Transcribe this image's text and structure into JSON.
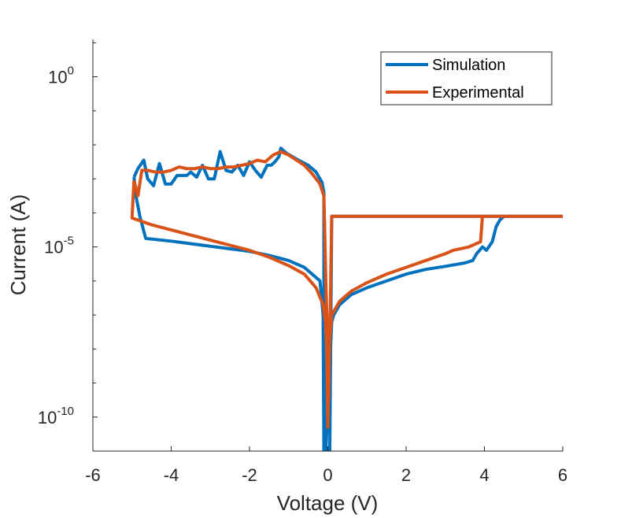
{
  "chart_data": {
    "type": "line",
    "title": "",
    "xlabel": "Voltage (V)",
    "ylabel": "Current (A)",
    "xlim": [
      -6,
      6
    ],
    "ylim_exponent": [
      -11,
      1.1
    ],
    "yscale": "log",
    "x_ticks": [
      -6,
      -4,
      -2,
      0,
      2,
      4,
      6
    ],
    "x_tick_labels": [
      "-6",
      "-4",
      "-2",
      "0",
      "2",
      "4",
      "6"
    ],
    "y_ticks": [
      {
        "exp": 0,
        "base": "10",
        "power": "0"
      },
      {
        "exp": -5,
        "base": "10",
        "power": "-5"
      },
      {
        "exp": -10,
        "base": "10",
        "power": "-10"
      }
    ],
    "legend": {
      "position": "top-right"
    },
    "series": [
      {
        "name": "Simulation",
        "color": "#0072BD",
        "points": [
          [
            -4.95,
            -2.95
          ],
          [
            -4.85,
            -2.7
          ],
          [
            -4.7,
            -2.45
          ],
          [
            -4.6,
            -3.0
          ],
          [
            -4.45,
            -3.2
          ],
          [
            -4.3,
            -2.55
          ],
          [
            -4.15,
            -3.15
          ],
          [
            -4.0,
            -3.15
          ],
          [
            -3.85,
            -2.9
          ],
          [
            -3.7,
            -2.9
          ],
          [
            -3.6,
            -2.9
          ],
          [
            -3.5,
            -2.8
          ],
          [
            -3.35,
            -2.95
          ],
          [
            -3.2,
            -2.6
          ],
          [
            -3.05,
            -3.0
          ],
          [
            -2.9,
            -3.0
          ],
          [
            -2.75,
            -2.2
          ],
          [
            -2.6,
            -2.75
          ],
          [
            -2.45,
            -2.8
          ],
          [
            -2.3,
            -2.6
          ],
          [
            -2.15,
            -2.9
          ],
          [
            -2.0,
            -2.5
          ],
          [
            -1.85,
            -2.75
          ],
          [
            -1.7,
            -2.95
          ],
          [
            -1.55,
            -2.6
          ],
          [
            -1.45,
            -2.6
          ],
          [
            -1.35,
            -2.5
          ],
          [
            -1.25,
            -2.35
          ],
          [
            -1.2,
            -2.1
          ],
          [
            -1.05,
            -2.25
          ],
          [
            -0.9,
            -2.35
          ],
          [
            -0.75,
            -2.45
          ],
          [
            -0.5,
            -2.6
          ],
          [
            -0.3,
            -2.8
          ],
          [
            -0.15,
            -3.1
          ],
          [
            -0.1,
            -3.4
          ],
          [
            -0.1,
            -6.0
          ],
          [
            -0.08,
            -11.0
          ],
          [
            0.05,
            -11.0
          ],
          [
            0.1,
            -4.1
          ],
          [
            0.2,
            -4.1
          ],
          [
            0.5,
            -4.1
          ],
          [
            1.0,
            -4.1
          ],
          [
            2.0,
            -4.1
          ],
          [
            3.0,
            -4.1
          ],
          [
            4.3,
            -4.1
          ],
          [
            5.0,
            -4.1
          ],
          [
            6.0,
            -4.1
          ]
        ],
        "return_points": [
          [
            4.5,
            -4.1
          ],
          [
            4.4,
            -4.2
          ],
          [
            4.3,
            -4.4
          ],
          [
            4.2,
            -4.85
          ],
          [
            4.05,
            -5.1
          ],
          [
            3.95,
            -5.0
          ],
          [
            3.8,
            -5.2
          ],
          [
            3.7,
            -5.4
          ],
          [
            3.5,
            -5.47
          ],
          [
            3.0,
            -5.57
          ],
          [
            2.5,
            -5.66
          ],
          [
            2.0,
            -5.8
          ],
          [
            1.5,
            -6.0
          ],
          [
            1.0,
            -6.2
          ],
          [
            0.6,
            -6.4
          ],
          [
            0.3,
            -6.7
          ],
          [
            0.15,
            -7.0
          ],
          [
            0.1,
            -7.2
          ],
          [
            -0.05,
            -11.0
          ],
          [
            -0.1,
            -11.0
          ],
          [
            -0.12,
            -7.0
          ],
          [
            -0.2,
            -6.0
          ],
          [
            -0.35,
            -5.85
          ],
          [
            -0.6,
            -5.6
          ],
          [
            -1.0,
            -5.4
          ],
          [
            -1.5,
            -5.25
          ],
          [
            -2.0,
            -5.13
          ],
          [
            -3.0,
            -4.98
          ],
          [
            -4.0,
            -4.83
          ],
          [
            -4.65,
            -4.75
          ],
          [
            -4.8,
            -4.1
          ],
          [
            -4.9,
            -3.5
          ],
          [
            -4.95,
            -2.95
          ]
        ]
      },
      {
        "name": "Experimental",
        "color": "#D95319",
        "points": [
          [
            -4.95,
            -3.05
          ],
          [
            -4.85,
            -3.5
          ],
          [
            -4.75,
            -2.75
          ],
          [
            -4.6,
            -2.75
          ],
          [
            -4.4,
            -2.8
          ],
          [
            -4.2,
            -2.8
          ],
          [
            -4.0,
            -2.75
          ],
          [
            -3.8,
            -2.65
          ],
          [
            -3.6,
            -2.7
          ],
          [
            -3.4,
            -2.7
          ],
          [
            -3.2,
            -2.65
          ],
          [
            -3.0,
            -2.7
          ],
          [
            -2.8,
            -2.7
          ],
          [
            -2.6,
            -2.65
          ],
          [
            -2.4,
            -2.65
          ],
          [
            -2.2,
            -2.6
          ],
          [
            -2.0,
            -2.55
          ],
          [
            -1.8,
            -2.45
          ],
          [
            -1.6,
            -2.5
          ],
          [
            -1.4,
            -2.3
          ],
          [
            -1.2,
            -2.2
          ],
          [
            -1.0,
            -2.3
          ],
          [
            -0.8,
            -2.45
          ],
          [
            -0.6,
            -2.6
          ],
          [
            -0.4,
            -2.85
          ],
          [
            -0.2,
            -3.15
          ],
          [
            -0.1,
            -3.5
          ],
          [
            -0.05,
            -6.0
          ],
          [
            0.0,
            -8.0
          ],
          [
            0.02,
            -9.5
          ],
          [
            0.06,
            -7.0
          ],
          [
            0.1,
            -4.1
          ],
          [
            0.5,
            -4.1
          ],
          [
            1.0,
            -4.1
          ],
          [
            2.0,
            -4.1
          ],
          [
            3.0,
            -4.1
          ],
          [
            4.0,
            -4.1
          ],
          [
            5.0,
            -4.1
          ],
          [
            6.0,
            -4.1
          ]
        ],
        "return_points": [
          [
            3.95,
            -4.1
          ],
          [
            3.9,
            -4.85
          ],
          [
            3.8,
            -4.9
          ],
          [
            3.6,
            -5.0
          ],
          [
            3.4,
            -5.05
          ],
          [
            3.2,
            -5.1
          ],
          [
            3.0,
            -5.2
          ],
          [
            2.8,
            -5.28
          ],
          [
            2.5,
            -5.4
          ],
          [
            2.0,
            -5.6
          ],
          [
            1.5,
            -5.8
          ],
          [
            1.0,
            -6.05
          ],
          [
            0.6,
            -6.3
          ],
          [
            0.3,
            -6.6
          ],
          [
            0.1,
            -7.0
          ],
          [
            0.03,
            -8.0
          ],
          [
            0.0,
            -10.3
          ],
          [
            -0.03,
            -8.0
          ],
          [
            -0.06,
            -7.2
          ],
          [
            -0.12,
            -6.7
          ],
          [
            -0.3,
            -6.2
          ],
          [
            -0.6,
            -5.8
          ],
          [
            -1.0,
            -5.55
          ],
          [
            -1.5,
            -5.3
          ],
          [
            -2.0,
            -5.1
          ],
          [
            -2.5,
            -4.95
          ],
          [
            -3.0,
            -4.8
          ],
          [
            -3.5,
            -4.65
          ],
          [
            -4.0,
            -4.5
          ],
          [
            -4.5,
            -4.35
          ],
          [
            -5.0,
            -4.15
          ],
          [
            -4.95,
            -3.05
          ]
        ]
      }
    ]
  }
}
